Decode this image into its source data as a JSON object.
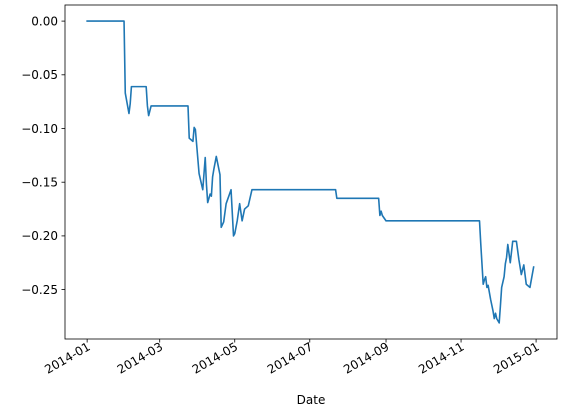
{
  "chart_data": {
    "type": "line",
    "xlabel": "Date",
    "ylabel": "",
    "title": "",
    "grid": false,
    "legend": "none",
    "line_color": "#1f77b4",
    "xlim": [
      "2013-12-14",
      "2015-01-18"
    ],
    "ylim": [
      -0.296,
      0.015
    ],
    "xticks": [
      {
        "date": "2014-01-01",
        "label": "2014-01"
      },
      {
        "date": "2014-03-01",
        "label": "2014-03"
      },
      {
        "date": "2014-05-01",
        "label": "2014-05"
      },
      {
        "date": "2014-07-01",
        "label": "2014-07"
      },
      {
        "date": "2014-09-01",
        "label": "2014-09"
      },
      {
        "date": "2014-11-01",
        "label": "2014-11"
      },
      {
        "date": "2015-01-01",
        "label": "2015-01"
      }
    ],
    "yticks": [
      {
        "value": 0.0,
        "label": "0.00"
      },
      {
        "value": -0.05,
        "label": "−0.05"
      },
      {
        "value": -0.1,
        "label": "−0.10"
      },
      {
        "value": -0.15,
        "label": "−0.15"
      },
      {
        "value": -0.2,
        "label": "−0.20"
      },
      {
        "value": -0.25,
        "label": "−0.25"
      }
    ],
    "series": [
      {
        "x": [
          "2014-01-01",
          "2014-01-31",
          "2014-02-01",
          "2014-02-04",
          "2014-02-05",
          "2014-02-06",
          "2014-02-18",
          "2014-02-19",
          "2014-02-20",
          "2014-02-22",
          "2014-03-24",
          "2014-03-25",
          "2014-03-28",
          "2014-03-29",
          "2014-03-30",
          "2014-04-02",
          "2014-04-05",
          "2014-04-07",
          "2014-04-08",
          "2014-04-09",
          "2014-04-11",
          "2014-04-12",
          "2014-04-13",
          "2014-04-14",
          "2014-04-16",
          "2014-04-19",
          "2014-04-20",
          "2014-04-22",
          "2014-04-24",
          "2014-04-28",
          "2014-04-30",
          "2014-05-01",
          "2014-05-03",
          "2014-05-05",
          "2014-05-07",
          "2014-05-09",
          "2014-05-12",
          "2014-05-15",
          "2014-05-17",
          "2014-05-19",
          "2014-05-21",
          "2014-07-22",
          "2014-07-23",
          "2014-08-26",
          "2014-08-27",
          "2014-08-28",
          "2014-08-29",
          "2014-09-01",
          "2014-11-16",
          "2014-11-17",
          "2014-11-19",
          "2014-11-20",
          "2014-11-21",
          "2014-11-22",
          "2014-11-23",
          "2014-11-25",
          "2014-11-27",
          "2014-11-28",
          "2014-11-29",
          "2014-11-30",
          "2014-12-02",
          "2014-12-03",
          "2014-12-04",
          "2014-12-06",
          "2014-12-07",
          "2014-12-08",
          "2014-12-09",
          "2014-12-11",
          "2014-12-13",
          "2014-12-14",
          "2014-12-15",
          "2014-12-16",
          "2014-12-18",
          "2014-12-20",
          "2014-12-22",
          "2014-12-24",
          "2014-12-27",
          "2014-12-30"
        ],
        "y": [
          0.0,
          0.0,
          -0.067,
          -0.086,
          -0.077,
          -0.061,
          -0.061,
          -0.079,
          -0.088,
          -0.079,
          -0.079,
          -0.109,
          -0.112,
          -0.099,
          -0.101,
          -0.142,
          -0.157,
          -0.127,
          -0.152,
          -0.169,
          -0.161,
          -0.163,
          -0.145,
          -0.138,
          -0.126,
          -0.143,
          -0.192,
          -0.187,
          -0.17,
          -0.157,
          -0.2,
          -0.198,
          -0.186,
          -0.17,
          -0.186,
          -0.175,
          -0.172,
          -0.157,
          -0.157,
          -0.157,
          -0.157,
          -0.157,
          -0.165,
          -0.165,
          -0.181,
          -0.177,
          -0.181,
          -0.186,
          -0.186,
          -0.207,
          -0.245,
          -0.241,
          -0.238,
          -0.248,
          -0.246,
          -0.259,
          -0.27,
          -0.277,
          -0.272,
          -0.277,
          -0.281,
          -0.265,
          -0.248,
          -0.238,
          -0.226,
          -0.22,
          -0.208,
          -0.225,
          -0.205,
          -0.205,
          -0.205,
          -0.205,
          -0.222,
          -0.236,
          -0.227,
          -0.245,
          -0.248,
          -0.229
        ]
      }
    ]
  }
}
